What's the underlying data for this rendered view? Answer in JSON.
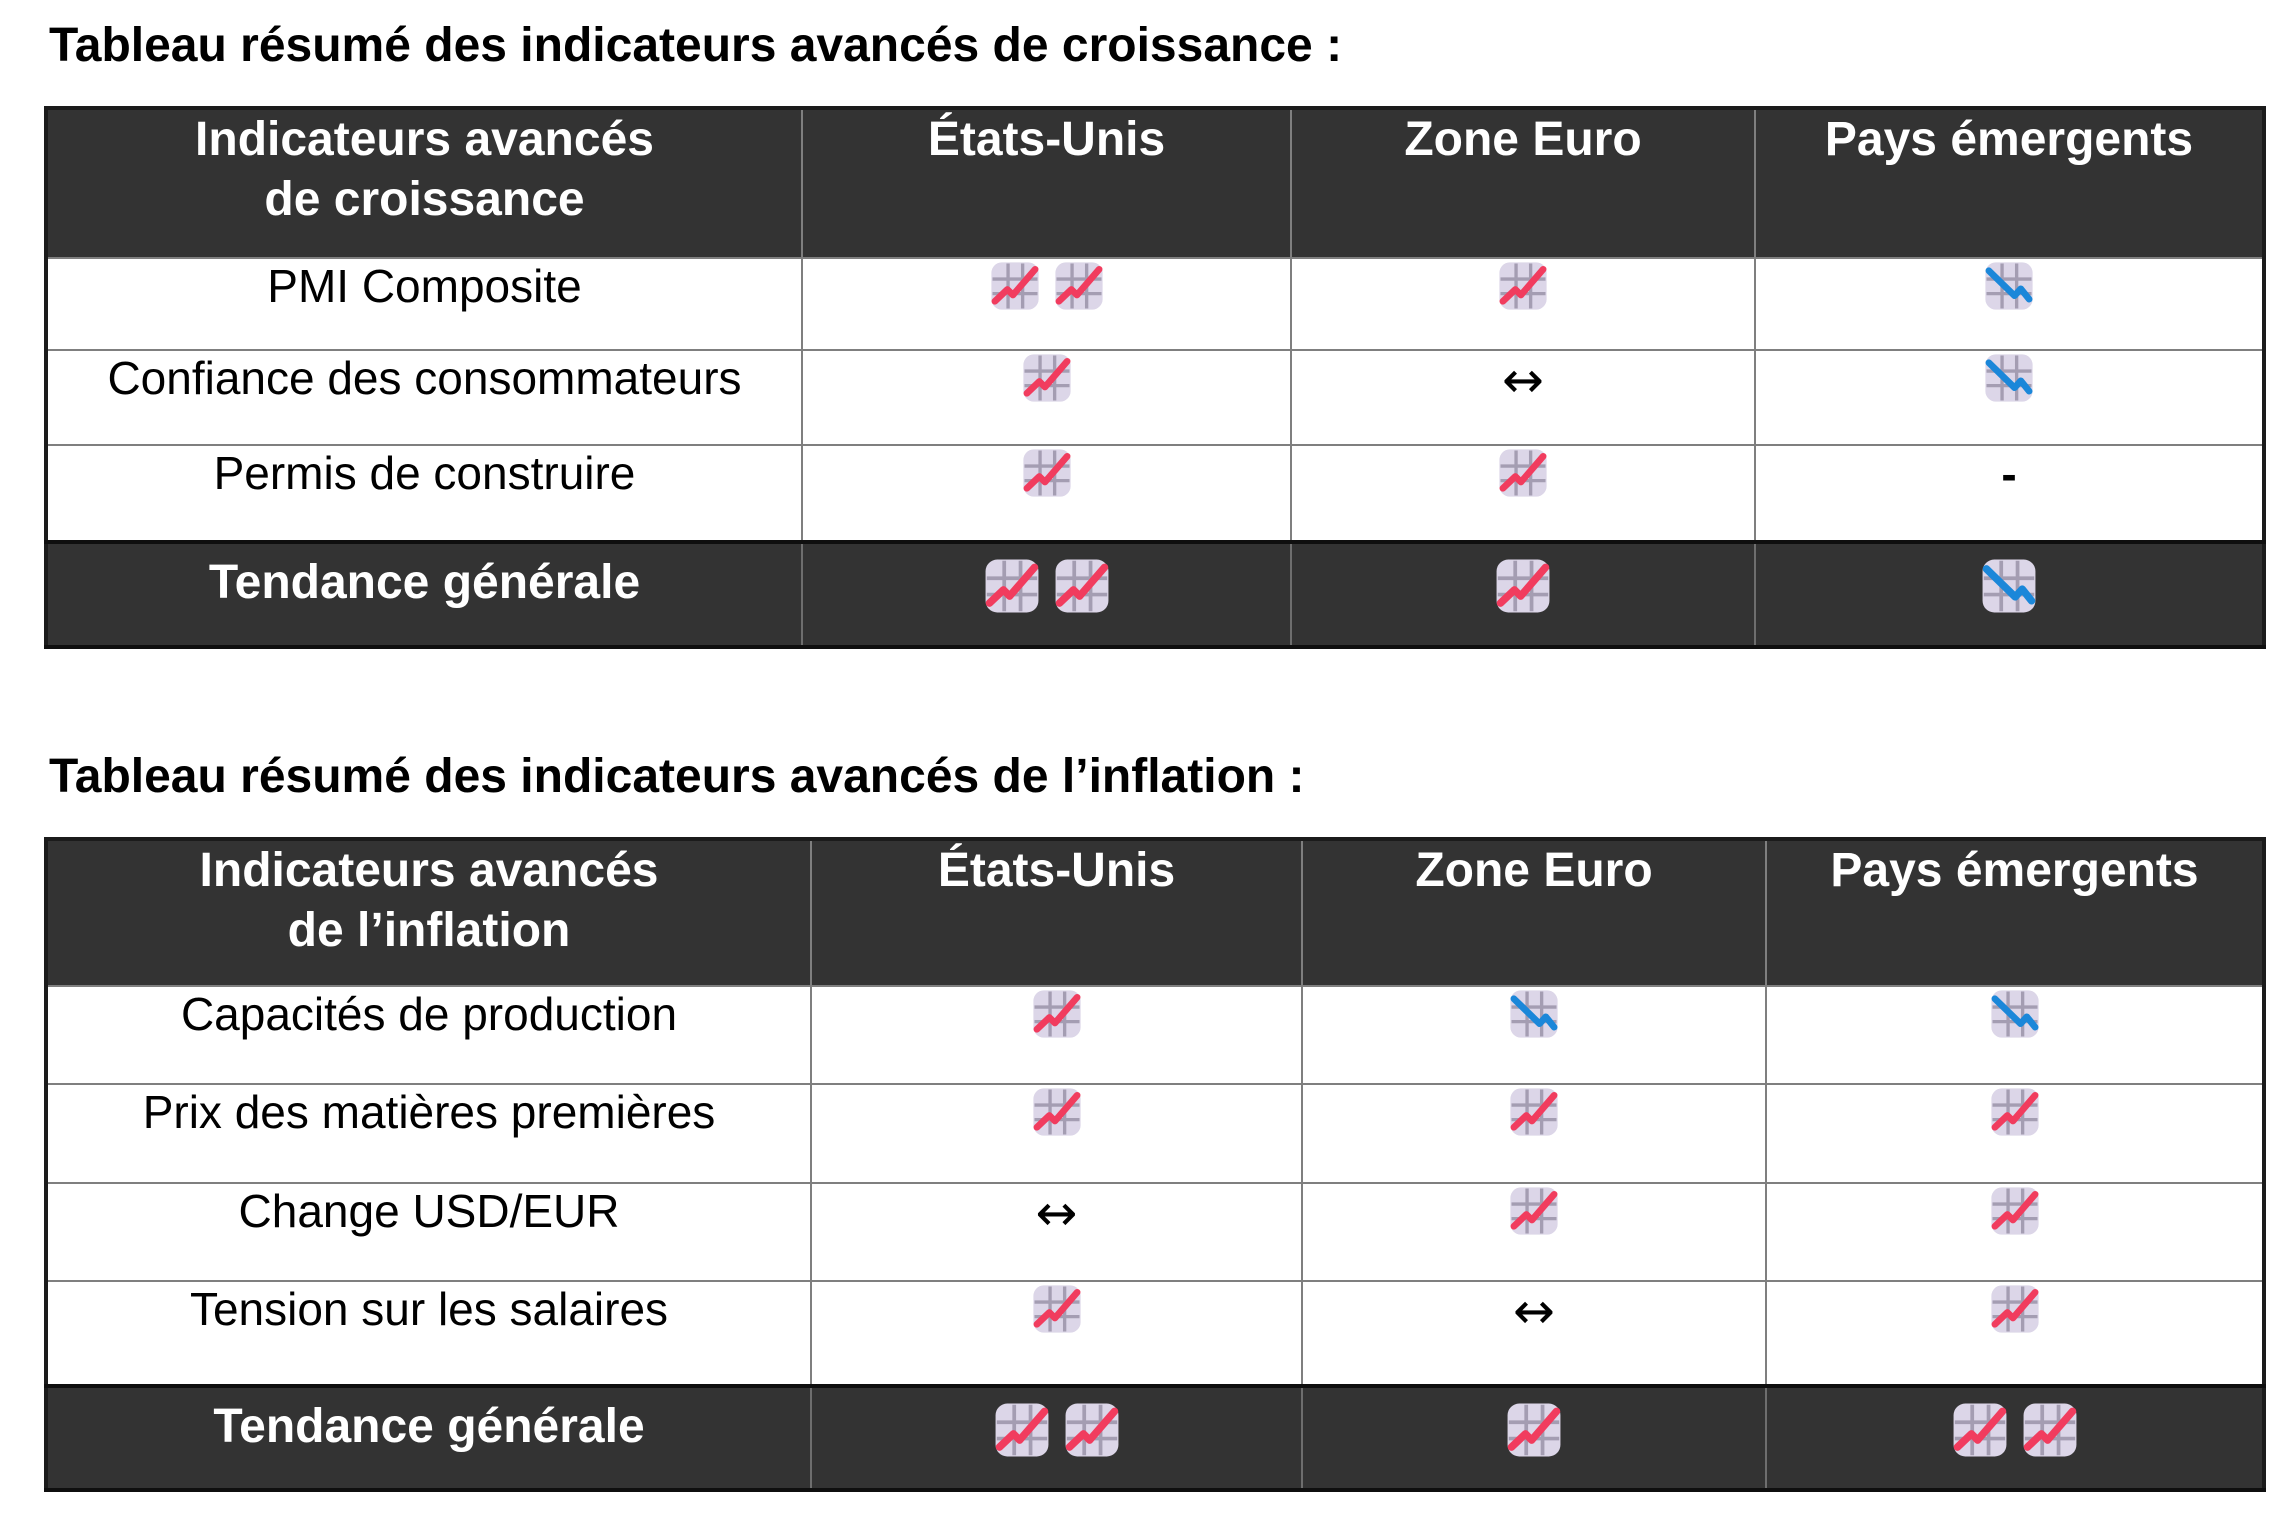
{
  "colors": {
    "header_bg": "#333333",
    "header_text": "#ffffff",
    "body_text": "#000000",
    "icon_bg": "#dcd6e8",
    "icon_grid": "#a49db2",
    "up_line": "#f13c5e",
    "down_line": "#1b87d9"
  },
  "icon_legend": {
    "up": {
      "name": "chart-increasing-icon",
      "meaning": "hausse"
    },
    "down": {
      "name": "chart-decreasing-icon",
      "meaning": "baisse"
    },
    "flat": {
      "name": "left-right-arrow-icon",
      "char": "↔"
    },
    "dash": {
      "name": "dash-glyph",
      "char": "-"
    }
  },
  "tables": [
    {
      "title": "Tableau résumé des indicateurs avancés de croissance :",
      "header": {
        "col1_line1": "Indicateurs avancés",
        "col1_line2": "de croissance",
        "columns": [
          "États-Unis",
          "Zone Euro",
          "Pays émergents"
        ]
      },
      "rows": [
        {
          "label": "PMI Composite",
          "cells": [
            [
              "up",
              "up"
            ],
            [
              "up"
            ],
            [
              "down"
            ]
          ]
        },
        {
          "label": "Confiance des consommateurs",
          "cells": [
            [
              "up"
            ],
            [
              "flat"
            ],
            [
              "down"
            ]
          ]
        },
        {
          "label": "Permis de construire",
          "cells": [
            [
              "up"
            ],
            [
              "up"
            ],
            [
              "dash"
            ]
          ]
        }
      ],
      "footer": {
        "label": "Tendance générale",
        "cells": [
          [
            "up",
            "up"
          ],
          [
            "up"
          ],
          [
            "down"
          ]
        ]
      }
    },
    {
      "title": "Tableau résumé des indicateurs avancés de l’inflation :",
      "header": {
        "col1_line1": "Indicateurs avancés",
        "col1_line2": "de l’inflation",
        "columns": [
          "États-Unis",
          "Zone Euro",
          "Pays émergents"
        ]
      },
      "rows": [
        {
          "label": "Capacités de production",
          "cells": [
            [
              "up"
            ],
            [
              "down"
            ],
            [
              "down"
            ]
          ]
        },
        {
          "label": "Prix des matières premières",
          "cells": [
            [
              "up"
            ],
            [
              "up"
            ],
            [
              "up"
            ]
          ]
        },
        {
          "label": "Change USD/EUR",
          "cells": [
            [
              "flat"
            ],
            [
              "up"
            ],
            [
              "up"
            ]
          ]
        },
        {
          "label": "Tension sur les salaires",
          "cells": [
            [
              "up"
            ],
            [
              "flat"
            ],
            [
              "up"
            ]
          ]
        }
      ],
      "footer": {
        "label": "Tendance générale",
        "cells": [
          [
            "up",
            "up"
          ],
          [
            "up"
          ],
          [
            "up",
            "up"
          ]
        ]
      }
    }
  ]
}
